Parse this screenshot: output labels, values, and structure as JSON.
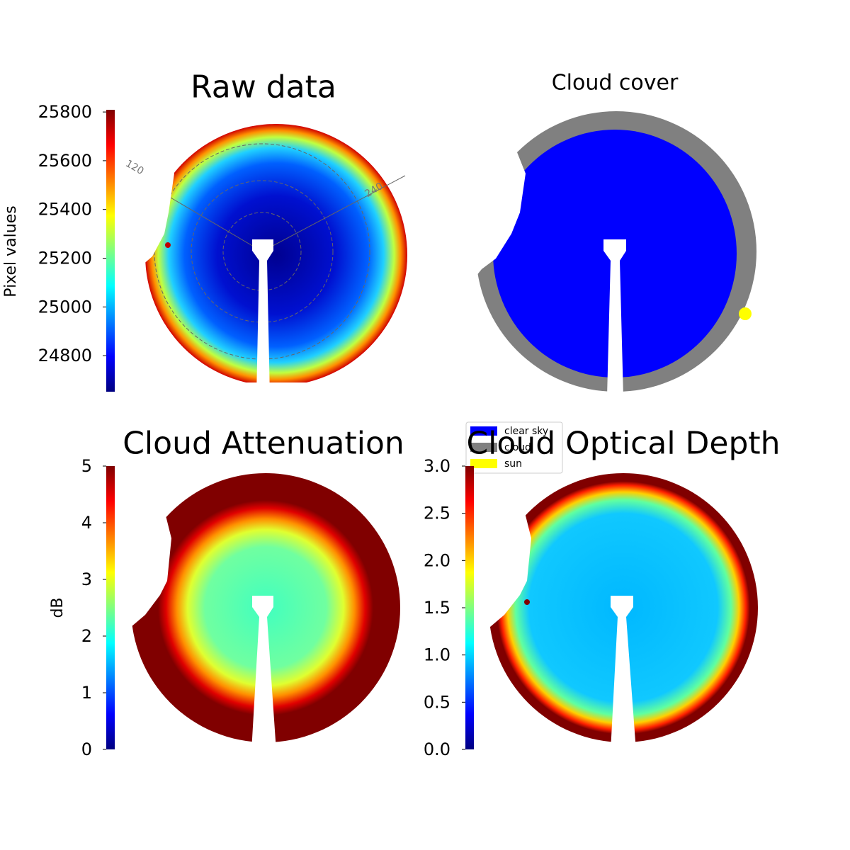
{
  "chart_data": [
    {
      "type": "image",
      "title": "Raw data",
      "ylabel": "Pixel values",
      "colormap": "jet",
      "ylim": [
        24652,
        25809
      ],
      "yticks": [
        24800,
        25000,
        25200,
        25400,
        25600,
        25800
      ],
      "annotations": [
        "120",
        "240"
      ]
    },
    {
      "type": "image",
      "title": "Cloud cover",
      "series": [
        {
          "name": "clear sky",
          "color": "#0000ff"
        },
        {
          "name": "cloud",
          "color": "#808080"
        },
        {
          "name": "sun",
          "color": "#ffff00"
        }
      ]
    },
    {
      "type": "image",
      "title": "Cloud Attenuation",
      "ylabel": "dB",
      "colormap": "jet",
      "ylim": [
        0,
        5
      ],
      "yticks": [
        0,
        1,
        2,
        3,
        4,
        5
      ]
    },
    {
      "type": "image",
      "title": "Cloud Optical Depth",
      "colormap": "jet",
      "ylim": [
        0,
        3
      ],
      "yticks": [
        {
          "value": 0,
          "label": "0.0"
        },
        0.5,
        {
          "value": 1,
          "label": "1.0"
        },
        1.5,
        {
          "value": 2,
          "label": "2.0"
        },
        2.5,
        {
          "value": 3,
          "label": "3.0"
        }
      ]
    }
  ]
}
